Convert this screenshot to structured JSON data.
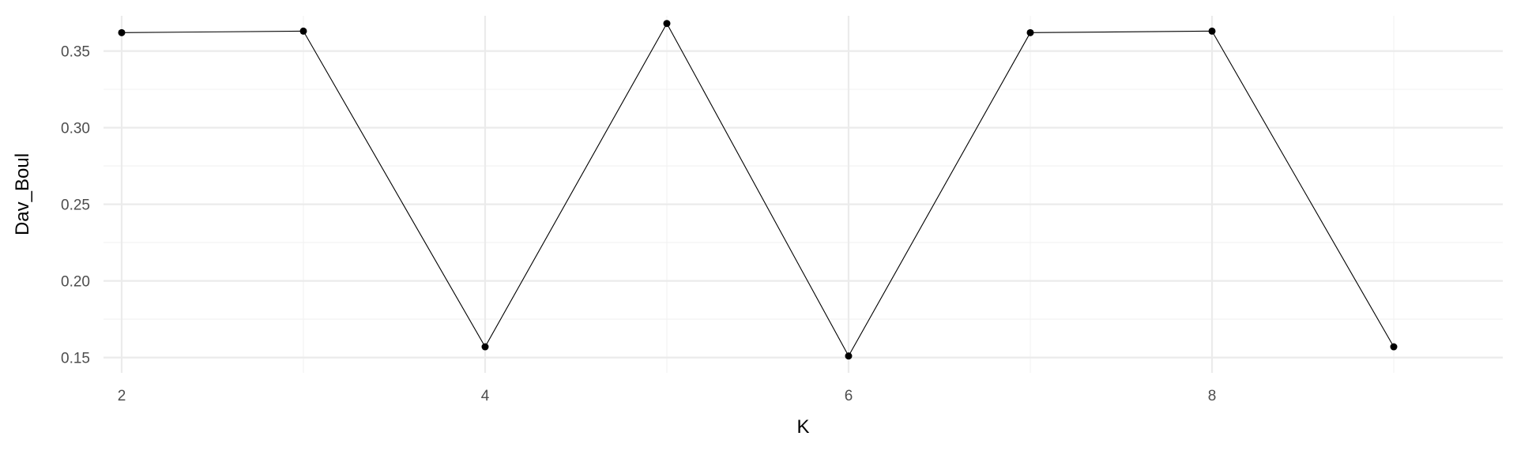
{
  "chart_data": {
    "type": "line",
    "title": "",
    "xlabel": "K",
    "ylabel": "Dav_Boul",
    "x": [
      2,
      3,
      4,
      5,
      6,
      7,
      8,
      9
    ],
    "series": [
      {
        "values": [
          0.362,
          0.363,
          0.157,
          0.368,
          0.151,
          0.362,
          0.363,
          0.157
        ]
      }
    ],
    "xlim": [
      1.9,
      9.6
    ],
    "ylim": [
      0.14,
      0.373
    ],
    "x_ticks": [
      2,
      4,
      6,
      8
    ],
    "x_minor_ticks": [
      3,
      5,
      7,
      9
    ],
    "y_ticks": [
      0.15,
      0.2,
      0.25,
      0.3,
      0.35
    ],
    "y_tick_labels": [
      "0.15",
      "0.20",
      "0.25",
      "0.30",
      "0.35"
    ],
    "y_minor_ticks": [
      0.175,
      0.225,
      0.275,
      0.325
    ],
    "grid": true,
    "legend": "none",
    "colors": {
      "line": "#000000",
      "points": "#000000",
      "grid_major": "#ebebeb",
      "grid_minor": "#f2f2f2"
    }
  }
}
